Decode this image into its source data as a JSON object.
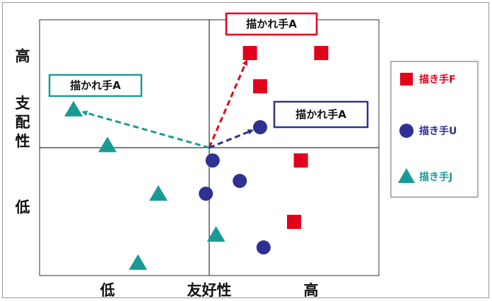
{
  "chart_data": {
    "type": "scatter",
    "title": "",
    "xlabel": "友好性",
    "ylabel": "支配性",
    "x_ticks": [
      {
        "label": "低",
        "value": 2
      },
      {
        "label": "高",
        "value": 8
      }
    ],
    "y_ticks": [
      {
        "label": "高",
        "value": 8.6
      },
      {
        "label": "低",
        "value": 2.7
      }
    ],
    "xlim": [
      0,
      10
    ],
    "ylim": [
      0,
      10
    ],
    "origin": [
      5,
      5
    ],
    "grid": false,
    "legend_position": "right",
    "series": [
      {
        "name": "描き手F",
        "marker": "square",
        "color": "#e3001b",
        "points": [
          [
            6.2,
            8.7
          ],
          [
            8.3,
            8.7
          ],
          [
            6.5,
            7.4
          ],
          [
            7.7,
            4.5
          ],
          [
            7.5,
            2.1
          ]
        ]
      },
      {
        "name": "描き手U",
        "marker": "circle",
        "color": "#2e3192",
        "points": [
          [
            6.5,
            5.8
          ],
          [
            5.1,
            4.5
          ],
          [
            5.9,
            3.7
          ],
          [
            4.9,
            3.2
          ],
          [
            6.6,
            1.1
          ]
        ]
      },
      {
        "name": "描き手J",
        "marker": "triangle",
        "color": "#1a9a96",
        "points": [
          [
            1.0,
            6.5
          ],
          [
            2.0,
            5.1
          ],
          [
            3.5,
            3.2
          ],
          [
            5.2,
            1.6
          ],
          [
            2.9,
            0.5
          ]
        ]
      }
    ],
    "annotations": [
      {
        "text": "描かれ手A",
        "color": "#e3001b",
        "target": [
          6.2,
          8.7
        ]
      },
      {
        "text": "描かれ手A",
        "color": "#1a9a96",
        "target": [
          1.0,
          6.5
        ]
      },
      {
        "text": "描かれ手A",
        "color": "#2e3192",
        "target": [
          6.5,
          5.8
        ]
      }
    ]
  }
}
